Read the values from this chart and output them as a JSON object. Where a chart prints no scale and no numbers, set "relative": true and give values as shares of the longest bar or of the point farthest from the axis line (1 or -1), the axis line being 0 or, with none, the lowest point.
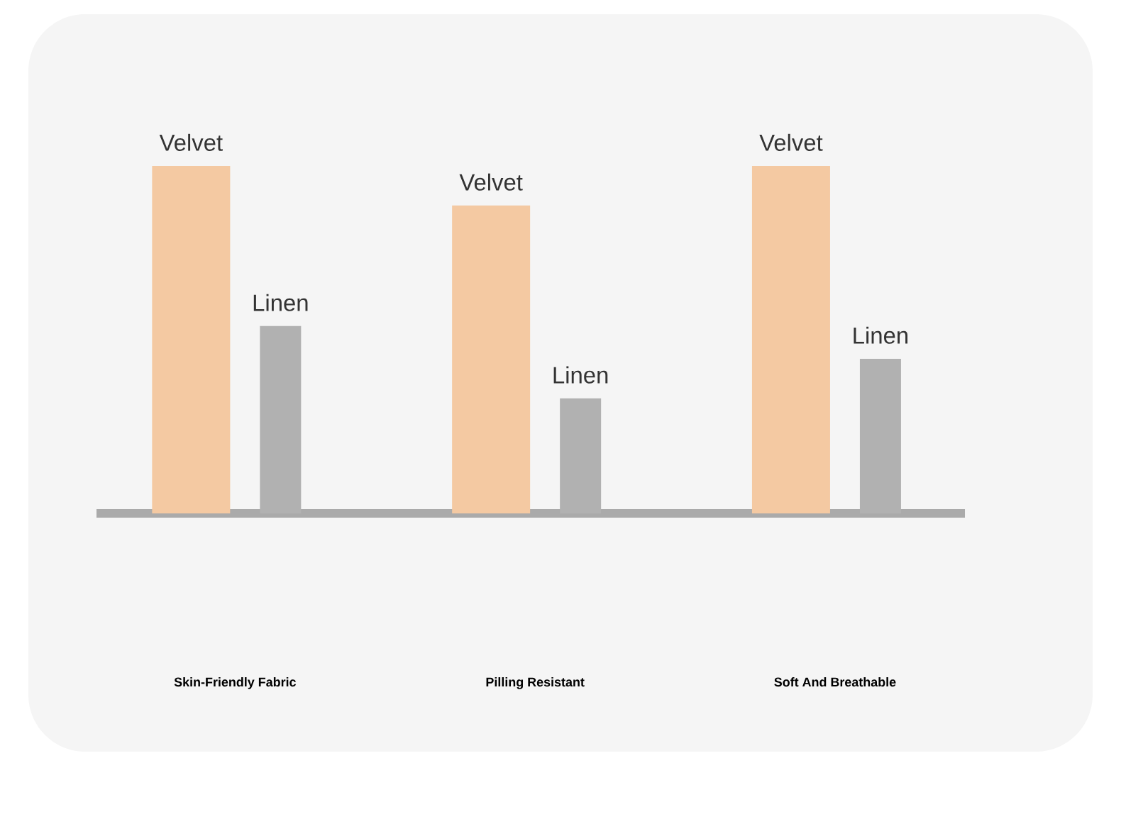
{
  "chart_data": {
    "type": "bar",
    "relative": true,
    "categories": [
      "Skin-Friendly Fabric",
      "Pilling Resistant",
      "Soft And Breathable"
    ],
    "series": [
      {
        "name": "Velvet",
        "color": "#f4c9a2",
        "values": [
          1,
          0.886,
          1
        ]
      },
      {
        "name": "Linen",
        "color": "#b1b1b1",
        "values": [
          0.539,
          0.331,
          0.445
        ]
      }
    ]
  }
}
